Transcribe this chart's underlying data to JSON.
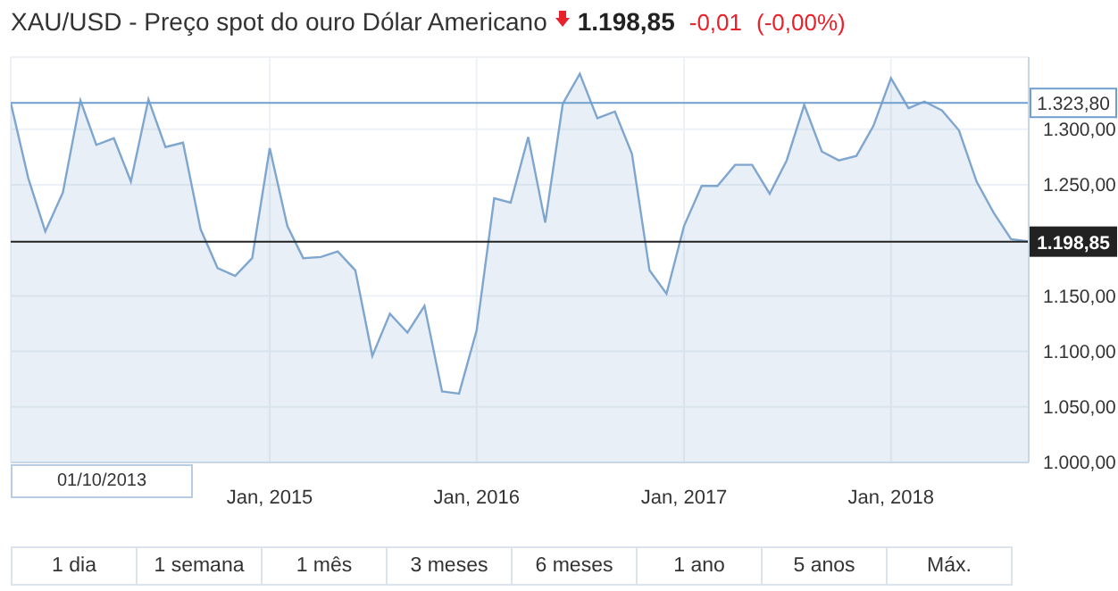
{
  "chart_data": {
    "type": "area",
    "title": "XAU/USD - Preço spot do ouro Dólar Americano",
    "annotations": [
      "1.198,85",
      "-0,01",
      "(-0,00%)",
      "01/10/2013",
      "1 dia",
      "1 semana",
      "1 mês",
      "3 meses",
      "6 meses",
      "1 ano",
      "5 anos",
      "Máx."
    ],
    "x": [
      "2013-10",
      "2013-11",
      "2013-12",
      "2014-01",
      "2014-02",
      "2014-03",
      "2014-04",
      "2014-05",
      "2014-06",
      "2014-07",
      "2014-08",
      "2014-09",
      "2014-10",
      "2014-11",
      "2014-12",
      "2015-01",
      "2015-02",
      "2015-03",
      "2015-04",
      "2015-05",
      "2015-06",
      "2015-07",
      "2015-08",
      "2015-09",
      "2015-10",
      "2015-11",
      "2015-12",
      "2016-01",
      "2016-02",
      "2016-03",
      "2016-04",
      "2016-05",
      "2016-06",
      "2016-07",
      "2016-08",
      "2016-09",
      "2016-10",
      "2016-11",
      "2016-12",
      "2017-01",
      "2017-02",
      "2017-03",
      "2017-04",
      "2017-05",
      "2017-06",
      "2017-07",
      "2017-08",
      "2017-09",
      "2017-10",
      "2017-11",
      "2017-12",
      "2018-01",
      "2018-02",
      "2018-03",
      "2018-04",
      "2018-05",
      "2018-06",
      "2018-07",
      "2018-08",
      "2018-09"
    ],
    "series": [
      {
        "color": "#7fa6cf",
        "values": [
          1324,
          1256,
          1208,
          1243,
          1326,
          1286,
          1292,
          1253,
          1327,
          1284,
          1288,
          1210,
          1175,
          1168,
          1184,
          1283,
          1213,
          1184,
          1185,
          1190,
          1173,
          1096,
          1134,
          1117,
          1141,
          1064,
          1062,
          1119,
          1238,
          1234,
          1293,
          1216,
          1323,
          1350,
          1310,
          1316,
          1278,
          1173,
          1152,
          1213,
          1249,
          1249,
          1268,
          1268,
          1242,
          1272,
          1322,
          1280,
          1272,
          1276,
          1303,
          1346,
          1319,
          1325,
          1317,
          1299,
          1253,
          1225,
          1201,
          1199
        ]
      }
    ],
    "xlim": [
      "2013-10",
      "2018-09"
    ],
    "xticks": [
      {
        "value": "2015-01",
        "label": "Jan, 2015"
      },
      {
        "value": "2016-01",
        "label": "Jan, 2016"
      },
      {
        "value": "2017-01",
        "label": "Jan, 2017"
      },
      {
        "value": "2018-01",
        "label": "Jan, 2018"
      }
    ],
    "ylim": [
      1000,
      1365
    ],
    "yticks": [
      {
        "value": 1000,
        "label": "1.000,00"
      },
      {
        "value": 1050,
        "label": "1.050,00"
      },
      {
        "value": 1100,
        "label": "1.100,00"
      },
      {
        "value": 1150,
        "label": "1.150,00"
      },
      {
        "value": 1250,
        "label": "1.250,00"
      },
      {
        "value": 1300,
        "label": "1.300,00"
      }
    ],
    "ref_lines": [
      {
        "axis": "y",
        "value": 1323.8,
        "label": "1.323,80",
        "color": "#6f9fcf"
      },
      {
        "axis": "y",
        "value": 1198.85,
        "label": "1.198,85",
        "color": "#222222"
      }
    ],
    "grid": true
  }
}
